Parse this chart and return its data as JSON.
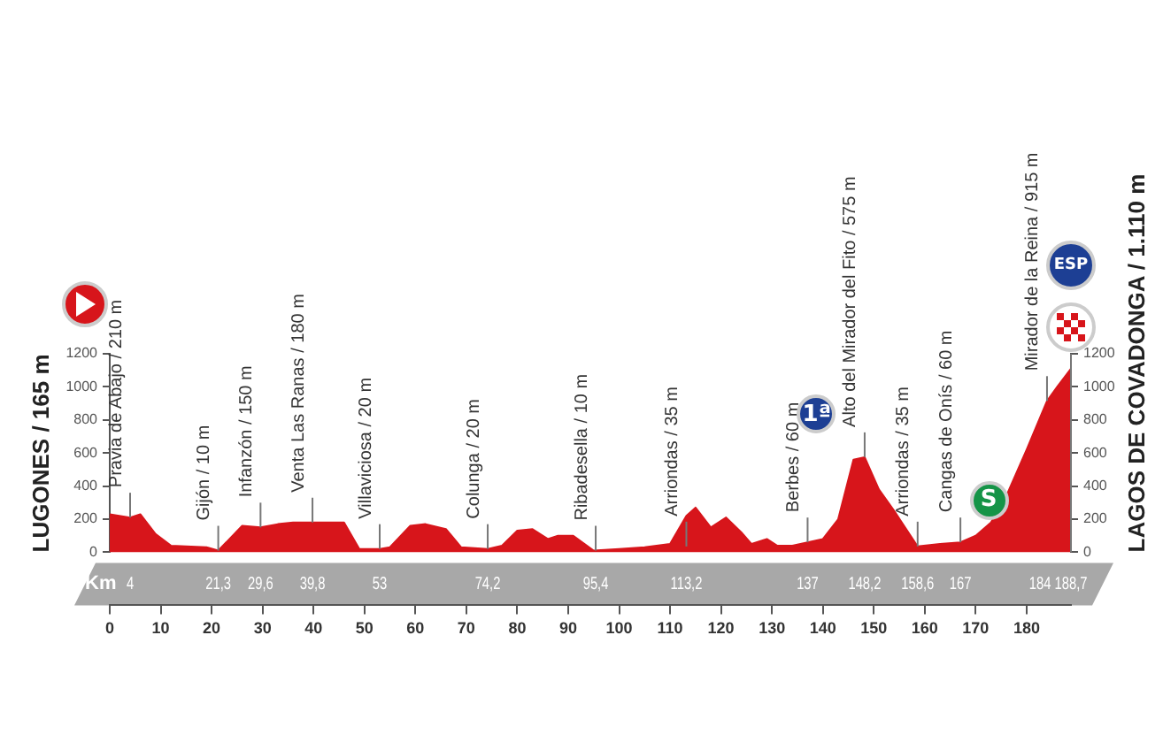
{
  "chart_data": {
    "type": "area",
    "color": "#d7151b",
    "ylabel": "LUGONES / 165 m",
    "y2label": "LAGOS DE COVADONGA / 1.110 m",
    "x2label": "Km",
    "x": [
      0,
      4,
      6,
      9,
      12,
      19,
      21.3,
      26,
      29.6,
      33,
      36,
      39.8,
      46,
      49,
      53,
      55,
      59,
      62,
      66,
      69,
      74.2,
      77,
      80,
      83,
      86,
      88,
      91,
      95,
      100,
      105,
      110,
      113.2,
      115,
      118,
      121,
      124,
      126,
      129,
      131,
      134,
      137,
      140,
      143,
      146,
      148.2,
      151,
      154,
      158.6,
      163,
      167,
      170,
      173,
      176,
      180,
      184,
      186,
      188.7
    ],
    "values": [
      230,
      210,
      230,
      110,
      40,
      30,
      10,
      160,
      150,
      170,
      180,
      180,
      180,
      20,
      20,
      30,
      160,
      170,
      140,
      30,
      20,
      40,
      130,
      140,
      80,
      100,
      100,
      10,
      20,
      30,
      50,
      220,
      270,
      150,
      210,
      120,
      50,
      80,
      40,
      40,
      60,
      80,
      200,
      560,
      575,
      380,
      250,
      35,
      50,
      60,
      100,
      180,
      340,
      620,
      915,
      1000,
      1110
    ],
    "xlim": [
      0,
      188.7
    ],
    "xticks": [
      0,
      10,
      20,
      30,
      40,
      50,
      60,
      70,
      80,
      90,
      100,
      110,
      120,
      130,
      140,
      150,
      160,
      170,
      180
    ],
    "x2lim": [
      0,
      188.7
    ],
    "x2ticks": [
      4,
      {
        "value": 21.3,
        "label": "21,3"
      },
      {
        "value": 29.6,
        "label": "29,6"
      },
      {
        "value": 39.8,
        "label": "39,8"
      },
      53,
      {
        "value": 74.2,
        "label": "74,2"
      },
      {
        "value": 95.4,
        "label": "95,4"
      },
      {
        "value": 113.2,
        "label": "113,2"
      },
      137,
      {
        "value": 148.2,
        "label": "148,2"
      },
      {
        "value": 158.6,
        "label": "158,6"
      },
      167,
      184,
      {
        "value": 188.7,
        "label": "188,7"
      }
    ],
    "ylim": [
      0,
      1200
    ],
    "yticks": [
      0,
      200,
      400,
      600,
      800,
      1000,
      1200
    ],
    "y2lim": [
      0,
      1200
    ],
    "y2ticks": [
      0,
      200,
      400,
      600,
      800,
      1000,
      1200
    ],
    "grid": false,
    "legend": false,
    "annotations": [
      {
        "text": "Pravia de Abajo / 210 m",
        "x": 4,
        "y": 210
      },
      {
        "text": "Gijón / 10 m",
        "x": 21.3,
        "y": 10
      },
      {
        "text": "Infanzón / 150 m",
        "x": 29.6,
        "y": 150
      },
      {
        "text": "Venta Las Ranas / 180 m",
        "x": 39.8,
        "y": 180
      },
      {
        "text": "Villaviciosa / 20 m",
        "x": 53,
        "y": 20
      },
      {
        "text": "Colunga / 20 m",
        "x": 74.2,
        "y": 20
      },
      {
        "text": "Ribadesella / 10 m",
        "x": 95.4,
        "y": 10
      },
      {
        "text": "Arriondas / 35 m",
        "x": 113.2,
        "y": 35
      },
      {
        "text": "Berbes / 60 m",
        "x": 137,
        "y": 60
      },
      {
        "text": "Alto del Mirador del Fito / 575 m",
        "x": 148.2,
        "y": 575
      },
      {
        "text": "Arriondas / 35 m",
        "x": 158.6,
        "y": 35
      },
      {
        "text": "Cangas de Onís / 60 m",
        "x": 167,
        "y": 60
      },
      {
        "text": "Mirador de la Reina / 915 m",
        "x": 184,
        "y": 915
      },
      {
        "text": "1ª",
        "x": 148.2,
        "y": 575
      },
      {
        "text": "S",
        "x": 167,
        "y": 60
      },
      "ESP"
    ]
  }
}
